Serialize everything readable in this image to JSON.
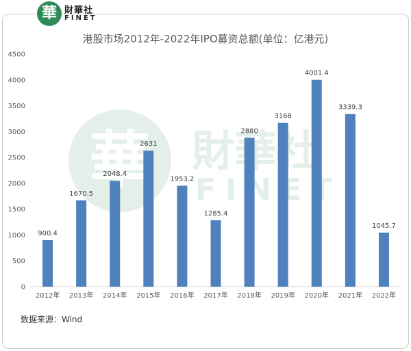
{
  "logo": {
    "seal": "華",
    "name_cn": "財華社",
    "name_en": "FINET",
    "color": "#2e8b57"
  },
  "source_note": "数据来源：Wind",
  "chart_data": {
    "type": "bar",
    "title": "港股市场2012年-2022年IPO募资总额(单位：亿港元)",
    "categories": [
      "2012年",
      "2013年",
      "2014年",
      "2015年",
      "2016年",
      "2017年",
      "2018年",
      "2019年",
      "2020年",
      "2021年",
      "2022年"
    ],
    "values": [
      900.4,
      1670.5,
      2048.4,
      2631,
      1953.2,
      1285.4,
      2880,
      3168,
      4001.4,
      3339.3,
      1045.7
    ],
    "data_labels": [
      "900.4",
      "1670.5",
      "2048.4",
      "2631",
      "1953.2",
      "1285.4",
      "2880",
      "3168",
      "4001.4",
      "3339.3",
      "1045.7"
    ],
    "yticks": [
      0,
      500,
      1000,
      1500,
      2000,
      2500,
      3000,
      3500,
      4000,
      4500
    ],
    "ylim": [
      0,
      4500
    ],
    "bar_color": "#4f81bd",
    "grid": false,
    "legend": "none"
  }
}
